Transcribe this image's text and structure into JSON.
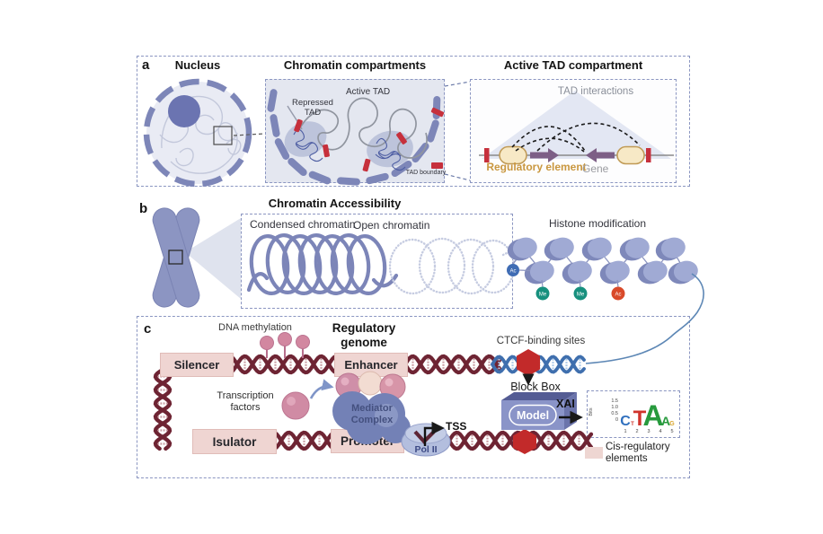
{
  "colors": {
    "panel_border": "#8b96c1",
    "nucleus_fill": "#e9ebf4",
    "envelope_blue": "#7d86b8",
    "nucleolus": "#6b74b1",
    "compartment_bg": "#e4e7f0",
    "tad_boundary_red": "#c6303c",
    "tad_triangle": "#dce1f0",
    "reg_element_fill": "#f7e9c6",
    "reg_element_border": "#c09a55",
    "gene_arrow_purple": "#7d5f86",
    "reg_element_text": "#c9973f",
    "chromosome_blue": "#8c95c2",
    "condensed_coil": "#7c85b8",
    "open_coil": "#c6cce1",
    "nucleosome": "#a0aad4",
    "dna_maroon": "#6e2433",
    "dna_blue": "#3f6fae",
    "thread_blue": "#5d87b5",
    "cre_pink": "#efd5d2",
    "methyl_pink": "#d287a0",
    "tf_pink": "#d08ba4",
    "mediator_blue": "#7381b6",
    "pol2_blue": "#b3bede",
    "model_front": "#8a94c8",
    "hexagon_red": "#c22a2a"
  },
  "panel_a": {
    "label": "a",
    "nucleus_title": "Nucleus",
    "compartments_title": "Chromatin compartments",
    "active_tad_title": "Active TAD compartment",
    "repressed_tad_label": "Repressed TAD",
    "active_tad_label": "Active TAD",
    "tad_boundary_label": "TAD boundary",
    "tad_interactions_label": "TAD interactions",
    "regulatory_element_label": "Regulatory element",
    "gene_label": "Gene"
  },
  "panel_b": {
    "label": "b",
    "title": "Chromatin Accessibility",
    "condensed_label": "Condensed chromatin",
    "open_label": "Open chromatin",
    "histone_label": "Histone modification",
    "marks": [
      {
        "text": "Ac",
        "color": "#3f6cb4"
      },
      {
        "text": "Me",
        "color": "#17907e"
      },
      {
        "text": "Me",
        "color": "#17907e"
      },
      {
        "text": "Ac",
        "color": "#d94a2a"
      }
    ]
  },
  "panel_c": {
    "label": "c",
    "title": "Regulatory genome",
    "dna_methylation_label": "DNA methylation",
    "silencer_label": "Silencer",
    "enhancer_label": "Enhancer",
    "ctcf_label": "CTCF-binding sites",
    "transcription_factors_label": "Transcription factors",
    "mediator_label": "Mediator Complex",
    "isulator_label": "Isulator",
    "promoter_label": "Promoter",
    "pol2_label": "Pol II",
    "tss_label": "TSS",
    "block_box_label": "Block Box",
    "model_label": "Model",
    "xai_label": "XAI",
    "legend_label": "Cis-regulatory elements",
    "logo": {
      "ylabel": "Bits",
      "yticks": [
        "1.5",
        "1.0",
        "0.5",
        "0"
      ],
      "xticks": [
        "1",
        "2",
        "3",
        "4",
        "5"
      ],
      "letters": [
        {
          "char": "C",
          "color": "#2f6fbe"
        },
        {
          "char": "T",
          "color": "#d0342c"
        },
        {
          "char": "T",
          "color": "#d0342c"
        },
        {
          "char": "A",
          "color": "#279a3d"
        },
        {
          "char": "A",
          "color": "#279a3d"
        },
        {
          "char": "G",
          "color": "#d9a62e"
        }
      ]
    }
  }
}
